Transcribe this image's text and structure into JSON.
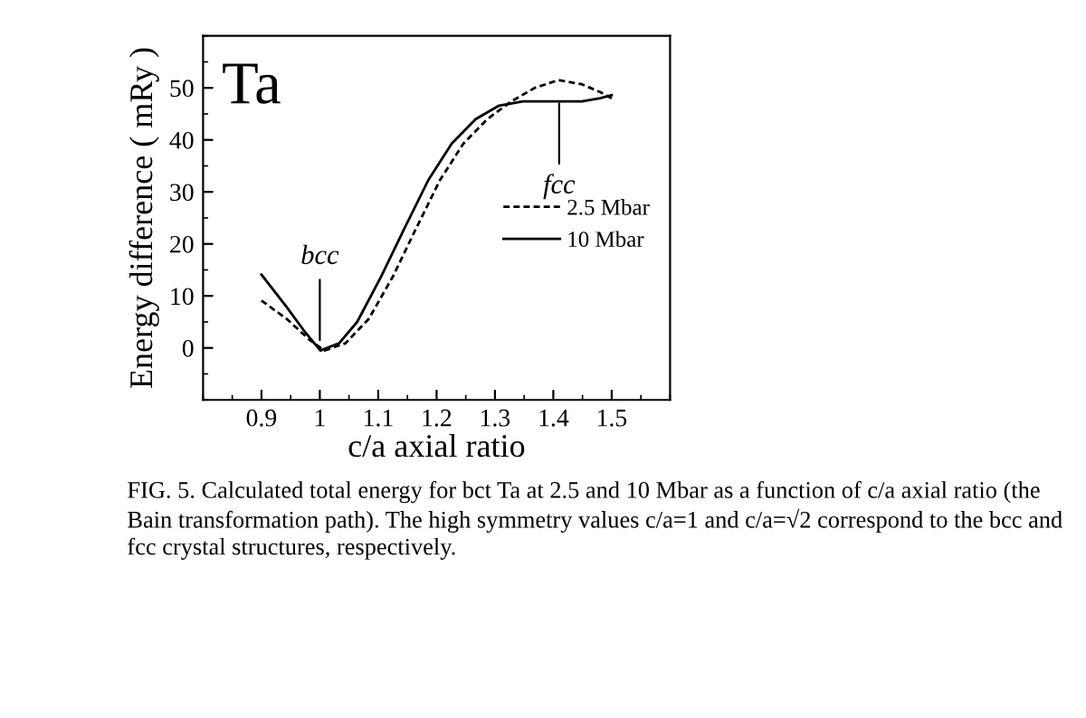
{
  "chart_data": {
    "type": "line",
    "xlabel": "c/a axial ratio",
    "ylabel": "Energy difference ( mRy )",
    "xlim": [
      0.8,
      1.6
    ],
    "ylim": [
      -10,
      60
    ],
    "xticks": [
      0.9,
      1,
      1.1,
      1.2,
      1.3,
      1.4,
      1.5
    ],
    "yticks": [
      0,
      10,
      20,
      30,
      40,
      50
    ],
    "legend": "right",
    "grid": false,
    "series": [
      {
        "name": "2.5 Mbar",
        "color": "#000000",
        "line_style": "dashed",
        "x": [
          0.9,
          0.943,
          0.983,
          1.008,
          1.044,
          1.084,
          1.125,
          1.165,
          1.206,
          1.246,
          1.287,
          1.328,
          1.368,
          1.409,
          1.449,
          1.48,
          1.5
        ],
        "values": [
          9.1,
          5.6,
          1.5,
          -0.5,
          0.9,
          5.6,
          13.7,
          23,
          32.3,
          39.3,
          44,
          47.4,
          50,
          51.5,
          50.7,
          49.2,
          48
        ]
      },
      {
        "name": "10 Mbar",
        "color": "#000000",
        "line_style": "solid",
        "x": [
          0.9,
          0.943,
          0.973,
          1.001,
          1.033,
          1.064,
          1.105,
          1.145,
          1.186,
          1.226,
          1.267,
          1.307,
          1.348,
          1.399,
          1.449,
          1.48,
          1.5
        ],
        "values": [
          14.1,
          7.9,
          3.3,
          -0.5,
          0.9,
          5,
          13.7,
          23,
          32.3,
          39.3,
          44,
          46.6,
          47.4,
          47.4,
          47.4,
          48,
          48.6
        ]
      }
    ],
    "annotations": [
      {
        "text": "Ta"
      },
      {
        "text": "bcc",
        "x": 1.0,
        "y": 1.5
      },
      {
        "text": "fcc",
        "x": 1.41,
        "y": 47
      },
      {
        "text": "FIG. 5. Calculated total energy for bct Ta at 2.5 and 10 Mbar as a function of c/a axial ratio (the Bain transformation path). The high symmetry values c/a=1 and c/a=√2 correspond to the bcc and fcc crystal structures, respectively."
      }
    ]
  }
}
